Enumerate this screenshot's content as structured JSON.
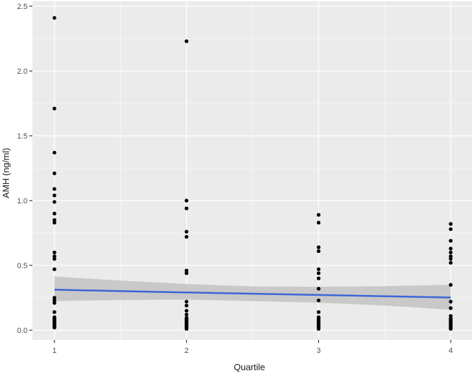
{
  "chart_data": {
    "type": "scatter",
    "title": "",
    "xlabel": "Quartile",
    "ylabel": "AMH (ng/ml)",
    "legend": "none",
    "axes": {
      "xlim": [
        0.83,
        4.16
      ],
      "ylim": [
        -0.07,
        2.54
      ],
      "x_tick_values": [
        1,
        2,
        3,
        4
      ],
      "x_tick_labels": [
        "1",
        "2",
        "3",
        "4"
      ],
      "y_tick_values": [
        0.0,
        0.5,
        1.0,
        1.5,
        2.0,
        2.5
      ],
      "y_tick_labels": [
        "0.0",
        "0.5",
        "1.0",
        "1.5",
        "2.0",
        "2.5"
      ],
      "x_minor_gridlines": [
        1.5,
        2.5,
        3.5
      ],
      "y_minor_gridlines": [
        0.25,
        0.75,
        1.25,
        1.75,
        2.25
      ],
      "grid": true
    },
    "series": [
      {
        "name": "Quartile 1",
        "x": 1,
        "values": [
          2.41,
          1.71,
          1.37,
          1.21,
          1.09,
          1.04,
          0.99,
          0.9,
          0.85,
          0.83,
          0.6,
          0.57,
          0.55,
          0.47,
          0.25,
          0.23,
          0.21,
          0.14,
          0.1,
          0.09,
          0.085,
          0.08,
          0.075,
          0.07,
          0.065,
          0.06,
          0.05,
          0.045,
          0.04,
          0.03,
          0.025,
          0.02
        ]
      },
      {
        "name": "Quartile 2",
        "x": 2,
        "values": [
          2.23,
          1.0,
          0.94,
          0.76,
          0.72,
          0.46,
          0.44,
          0.22,
          0.19,
          0.15,
          0.12,
          0.095,
          0.09,
          0.085,
          0.08,
          0.07,
          0.065,
          0.06,
          0.05,
          0.045,
          0.04,
          0.03,
          0.025,
          0.02,
          0.01
        ]
      },
      {
        "name": "Quartile 3",
        "x": 3,
        "values": [
          0.89,
          0.83,
          0.64,
          0.61,
          0.47,
          0.44,
          0.4,
          0.32,
          0.23,
          0.14,
          0.1,
          0.09,
          0.08,
          0.07,
          0.065,
          0.06,
          0.05,
          0.045,
          0.04,
          0.03,
          0.02,
          0.01
        ]
      },
      {
        "name": "Quartile 4",
        "x": 4,
        "values": [
          0.82,
          0.78,
          0.69,
          0.63,
          0.6,
          0.57,
          0.55,
          0.52,
          0.35,
          0.22,
          0.17,
          0.11,
          0.09,
          0.085,
          0.08,
          0.075,
          0.07,
          0.06,
          0.055,
          0.05,
          0.04,
          0.035,
          0.03,
          0.02,
          0.01
        ]
      }
    ],
    "smooth": {
      "line": [
        [
          1,
          0.312
        ],
        [
          2,
          0.291
        ],
        [
          3,
          0.272
        ],
        [
          4,
          0.252
        ]
      ],
      "ribbon_top": [
        [
          1,
          0.415
        ],
        [
          1.5,
          0.383
        ],
        [
          2,
          0.357
        ],
        [
          2.5,
          0.338
        ],
        [
          3,
          0.335
        ],
        [
          3.5,
          0.34
        ],
        [
          4,
          0.35
        ]
      ],
      "ribbon_bottom": [
        [
          1,
          0.225
        ],
        [
          1.5,
          0.233
        ],
        [
          2,
          0.236
        ],
        [
          2.5,
          0.225
        ],
        [
          3,
          0.212
        ],
        [
          3.5,
          0.19
        ],
        [
          4,
          0.158
        ]
      ]
    },
    "colors": {
      "page_bg": "#ffffff",
      "panel_bg": "#ebebeb",
      "grid_major": "#ffffff",
      "grid_minor": "#ffffff",
      "point": "#000000",
      "smooth_line": "#3a64d8",
      "smooth_ribbon": "#c9c9c9",
      "tick_mark": "#333333",
      "tick_text": "#4d4d4d",
      "axis_title_text": "#1a1a1a"
    }
  }
}
